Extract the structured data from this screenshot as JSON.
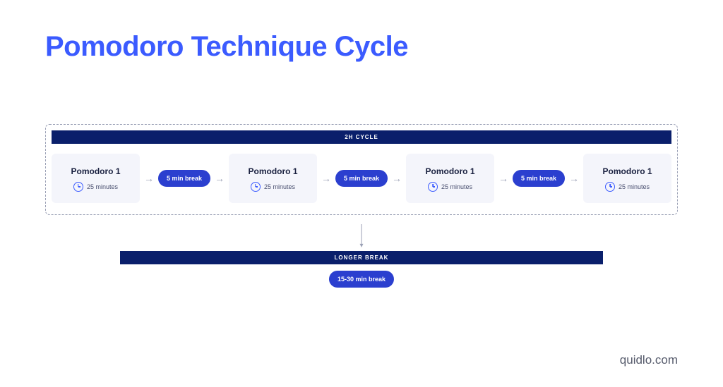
{
  "title": "Pomodoro Technique Cycle",
  "colors": {
    "title": "#3b5bff",
    "bar_bg": "#0a1f6b",
    "bar_text": "#ffffff",
    "card_bg": "#f4f5fb",
    "card_title": "#1a2140",
    "card_sub": "#4a5070",
    "pill_bg": "#2b3fcf",
    "pill_text": "#ffffff",
    "arrow": "#9aa0b5",
    "dashed_border": "#9aa0b5",
    "background": "#ffffff",
    "footer": "#555a6b",
    "clock_icon": "#3b5bff"
  },
  "cycle": {
    "header_label": "2H CYCLE",
    "pomodoros": [
      {
        "title": "Pomodoro 1",
        "duration": "25 minutes"
      },
      {
        "title": "Pomodoro 1",
        "duration": "25 minutes"
      },
      {
        "title": "Pomodoro 1",
        "duration": "25 minutes"
      },
      {
        "title": "Pomodoro 1",
        "duration": "25 minutes"
      }
    ],
    "short_break_label": "5 min break"
  },
  "longer_break": {
    "header_label": "LONGER BREAK",
    "pill_label": "15-30 min break"
  },
  "footer": "quidlo.com"
}
